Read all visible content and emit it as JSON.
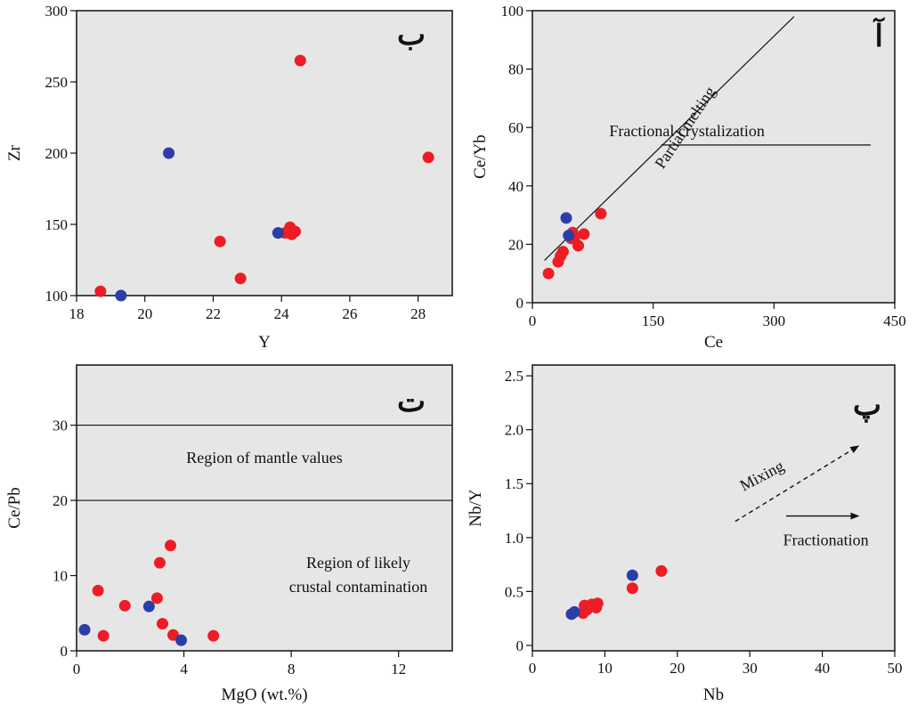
{
  "colors": {
    "panel_bg": "#e6e6e6",
    "series_red": "#ee1c24",
    "series_blue": "#2b3ea8",
    "line": "#111111"
  },
  "chart_data": [
    {
      "id": "ba",
      "type": "scatter",
      "panel_letter": "ب",
      "xlabel": "Y",
      "ylabel": "Zr",
      "xlim": [
        18,
        29
      ],
      "ylim": [
        100,
        300
      ],
      "xticks": [
        18,
        20,
        22,
        24,
        26,
        28
      ],
      "yticks": [
        100,
        150,
        200,
        250,
        300
      ],
      "series": [
        {
          "color": "red",
          "points": [
            [
              18.7,
              103
            ],
            [
              22.2,
              138
            ],
            [
              22.8,
              112
            ],
            [
              24.1,
              144
            ],
            [
              24.25,
              148
            ],
            [
              24.3,
              143
            ],
            [
              24.4,
              145
            ],
            [
              24.55,
              265
            ],
            [
              28.3,
              197
            ]
          ]
        },
        {
          "color": "blue",
          "points": [
            [
              19.3,
              100
            ],
            [
              20.7,
              200
            ],
            [
              23.9,
              144
            ]
          ]
        }
      ],
      "lines": [],
      "annotations": []
    },
    {
      "id": "alef",
      "type": "scatter",
      "panel_letter": "آ",
      "xlabel": "Ce",
      "ylabel": "Ce/Yb",
      "xlim": [
        0,
        450
      ],
      "ylim": [
        0,
        100
      ],
      "xticks": [
        0,
        150,
        300,
        450
      ],
      "yticks": [
        0,
        20,
        40,
        60,
        80,
        100
      ],
      "series": [
        {
          "color": "red",
          "points": [
            [
              20,
              10
            ],
            [
              32,
              14
            ],
            [
              35,
              16
            ],
            [
              38,
              17.5
            ],
            [
              48,
              22
            ],
            [
              50,
              24
            ],
            [
              52,
              22
            ],
            [
              57,
              19.5
            ],
            [
              64,
              23.5
            ],
            [
              85,
              30.5
            ]
          ]
        },
        {
          "color": "blue",
          "points": [
            [
              42,
              29
            ],
            [
              45,
              23
            ]
          ]
        }
      ],
      "lines": [
        {
          "x": [
            15,
            325
          ],
          "y": [
            14.5,
            98
          ]
        },
        {
          "x": [
            160,
            420
          ],
          "y": [
            54,
            54
          ]
        }
      ],
      "annotations": [
        {
          "text": "Partial melting",
          "x": 195,
          "y": 59,
          "rotate": -56
        },
        {
          "text": "Fractional crystalization",
          "x": 192,
          "y": 57
        }
      ]
    },
    {
      "id": "te",
      "type": "scatter",
      "panel_letter": "ت",
      "xlabel": "MgO (wt.%)",
      "ylabel": "Ce/Pb",
      "xlim": [
        0,
        14
      ],
      "ylim": [
        0,
        38
      ],
      "xticks": [
        0,
        4,
        8,
        12
      ],
      "yticks": [
        0,
        10,
        20,
        30
      ],
      "series": [
        {
          "color": "red",
          "points": [
            [
              0.8,
              8
            ],
            [
              1.0,
              2
            ],
            [
              1.8,
              6
            ],
            [
              3.0,
              7
            ],
            [
              3.1,
              11.7
            ],
            [
              3.2,
              3.6
            ],
            [
              3.5,
              14
            ],
            [
              3.6,
              2.1
            ],
            [
              5.1,
              2
            ]
          ]
        },
        {
          "color": "blue",
          "points": [
            [
              0.3,
              2.8
            ],
            [
              2.7,
              5.9
            ],
            [
              3.9,
              1.4
            ]
          ]
        }
      ],
      "lines": [
        {
          "x": [
            0,
            14
          ],
          "y": [
            30,
            30
          ]
        },
        {
          "x": [
            0,
            14
          ],
          "y": [
            20,
            20
          ]
        }
      ],
      "annotations": [
        {
          "text": "Region of mantle values",
          "x": 7,
          "y": 25
        },
        {
          "text": "Region of likely",
          "x": 10.5,
          "y": 11
        },
        {
          "text": "crustal contamination",
          "x": 10.5,
          "y": 7.8
        }
      ]
    },
    {
      "id": "pe",
      "type": "scatter",
      "panel_letter": "پ",
      "xlabel": "Nb",
      "ylabel": "Nb/Y",
      "xlim": [
        0,
        50
      ],
      "ylim": [
        -0.05,
        2.6
      ],
      "xticks": [
        0,
        10,
        20,
        30,
        40,
        50
      ],
      "yticks": [
        "0",
        "0.5",
        "1.0",
        "1.5",
        "2.0",
        "2.5"
      ],
      "series": [
        {
          "color": "red",
          "points": [
            [
              7,
              0.3
            ],
            [
              7.2,
              0.37
            ],
            [
              7.5,
              0.33
            ],
            [
              8.2,
              0.38
            ],
            [
              8.8,
              0.35
            ],
            [
              9,
              0.39
            ],
            [
              13.8,
              0.53
            ],
            [
              17.8,
              0.69
            ]
          ]
        },
        {
          "color": "blue",
          "points": [
            [
              5.4,
              0.29
            ],
            [
              5.8,
              0.31
            ],
            [
              13.8,
              0.65
            ]
          ]
        }
      ],
      "lines": [],
      "arrows": [
        {
          "x": [
            28,
            45
          ],
          "y": [
            1.15,
            1.85
          ],
          "dashed": true
        },
        {
          "x": [
            35,
            45
          ],
          "y": [
            1.2,
            1.2
          ],
          "dashed": false
        }
      ],
      "annotations": [
        {
          "text": "Mixing",
          "x": 32,
          "y": 1.53,
          "rotate": -28
        },
        {
          "text": "Fractionation",
          "x": 40.5,
          "y": 0.93
        }
      ]
    }
  ]
}
